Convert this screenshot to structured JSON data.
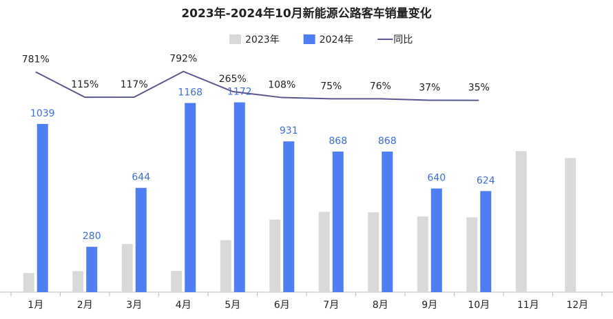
{
  "chart_data": {
    "type": "bar",
    "title": "2023年-2024年10月新能源公路客车销量变化",
    "categories": [
      "1月",
      "2月",
      "3月",
      "4月",
      "5月",
      "6月",
      "7月",
      "8月",
      "9月",
      "10月",
      "11月",
      "12月"
    ],
    "series": [
      {
        "name": "2023年",
        "type": "bar",
        "color": "#d9d9d9",
        "values": [
          118,
          130,
          297,
          131,
          321,
          448,
          496,
          493,
          467,
          462,
          871,
          828
        ]
      },
      {
        "name": "2024年",
        "type": "bar",
        "color": "#4f7ef2",
        "show_labels": true,
        "values": [
          1039,
          280,
          644,
          1168,
          1172,
          931,
          868,
          868,
          640,
          624,
          null,
          null
        ]
      },
      {
        "name": "同比",
        "type": "line",
        "color": "#5a5890",
        "axis": "y2",
        "values": [
          781,
          115,
          117,
          792,
          265,
          108,
          75,
          76,
          37,
          35,
          null,
          null
        ],
        "value_labels": [
          "781%",
          "115%",
          "117%",
          "792%",
          "265%",
          "108%",
          "75%",
          "76%",
          "37%",
          "35%",
          null,
          null
        ]
      }
    ],
    "ylim": [
      0,
      1400
    ],
    "y2lim": [
      -5000,
      950
    ],
    "grid": false,
    "legend": "top"
  }
}
